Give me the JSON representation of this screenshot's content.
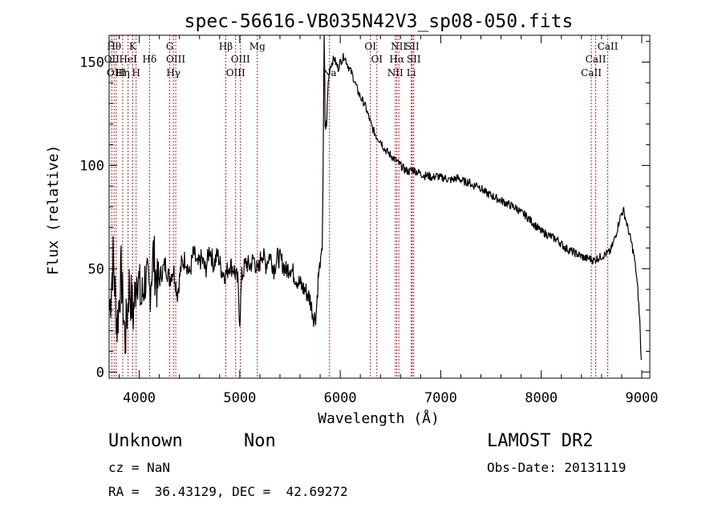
{
  "chart_data": {
    "type": "line",
    "title": "spec-56616-VB035N42V3_sp08-050.fits",
    "xlabel": "Wavelength (Å)",
    "ylabel": "Flux (relative)",
    "xlim": [
      3700,
      9080
    ],
    "ylim": [
      -3,
      163
    ],
    "xticks": [
      4000,
      5000,
      6000,
      7000,
      8000,
      9000
    ],
    "yticks": [
      0,
      50,
      100,
      150
    ],
    "grid": false,
    "line_color": "#000000",
    "marker_color": "#cc0000",
    "series": [
      {
        "x": [
          3705,
          3740,
          3780,
          3820,
          3860,
          3900,
          3940,
          3980,
          4020,
          4060,
          4100,
          4140,
          4180,
          4220,
          4260,
          4300,
          4340,
          4380,
          4420,
          4460,
          4500,
          4540,
          4580,
          4620,
          4660,
          4700,
          4740,
          4780,
          4820,
          4860,
          4900,
          4940,
          4980,
          5000,
          5020,
          5060,
          5100,
          5140,
          5180,
          5220,
          5260,
          5300,
          5340,
          5380,
          5420,
          5460,
          5500,
          5540,
          5580,
          5620,
          5660,
          5700,
          5720,
          5740,
          5760,
          5780,
          5800,
          5820,
          5830,
          5840,
          5850,
          5860,
          5870,
          5880,
          5900,
          5920,
          5940,
          5960,
          5980,
          6000,
          6040,
          6080,
          6120,
          6160,
          6200,
          6240,
          6280,
          6320,
          6360,
          6400,
          6440,
          6480,
          6520,
          6560,
          6600,
          6640,
          6680,
          6720,
          6760,
          6800,
          6840,
          6880,
          6920,
          6960,
          7000,
          7040,
          7080,
          7120,
          7160,
          7200,
          7240,
          7280,
          7320,
          7360,
          7400,
          7440,
          7480,
          7520,
          7560,
          7600,
          7640,
          7680,
          7720,
          7760,
          7800,
          7840,
          7880,
          7920,
          7960,
          8000,
          8040,
          8080,
          8120,
          8160,
          8200,
          8240,
          8280,
          8320,
          8360,
          8400,
          8440,
          8480,
          8520,
          8560,
          8600,
          8640,
          8680,
          8700,
          8720,
          8740,
          8760,
          8780,
          8800,
          8820,
          8840,
          8860,
          8880,
          8900,
          8920,
          8940,
          8960,
          8980,
          8995
        ],
        "y": [
          30,
          55,
          22,
          48,
          15,
          42,
          28,
          50,
          33,
          46,
          38,
          57,
          41,
          48,
          52,
          45,
          50,
          38,
          52,
          55,
          47,
          58,
          51,
          55,
          49,
          60,
          52,
          57,
          49,
          47,
          52,
          50,
          44,
          25,
          46,
          53,
          51,
          55,
          48,
          58,
          52,
          57,
          50,
          56,
          53,
          49,
          51,
          47,
          44,
          41,
          39,
          35,
          30,
          26,
          28,
          45,
          52,
          60,
          100,
          163,
          120,
          118,
          128,
          140,
          148,
          150,
          152,
          149,
          147,
          150,
          153,
          148,
          144,
          138,
          133,
          130,
          124,
          118,
          114,
          112,
          108,
          106,
          104,
          102,
          100,
          98,
          97,
          98,
          97,
          96,
          95,
          95,
          94,
          95,
          94,
          94,
          93,
          93,
          94,
          93,
          92,
          92,
          90,
          91,
          89,
          87,
          86,
          85,
          84,
          83,
          82,
          81,
          80,
          79,
          77,
          76,
          74,
          72,
          70,
          68,
          67,
          66,
          65,
          64,
          62,
          60,
          59,
          58,
          57,
          56,
          55,
          55,
          54,
          55,
          56,
          57,
          58,
          60,
          63,
          66,
          70,
          74,
          77,
          78,
          74,
          70,
          66,
          62,
          57,
          50,
          40,
          25,
          5
        ]
      }
    ],
    "lines": [
      {
        "w": 3727,
        "label": "OII",
        "row": 2
      },
      {
        "w": 3750,
        "label": "Hθ",
        "row": 1
      },
      {
        "w": 3771,
        "label": "OIII",
        "row": 3
      },
      {
        "w": 3835,
        "label": "Hη",
        "row": 3
      },
      {
        "w": 3889,
        "label": "HeI",
        "row": 2
      },
      {
        "w": 3934,
        "label": "K",
        "row": 1
      },
      {
        "w": 3969,
        "label": "H",
        "row": 3
      },
      {
        "w": 4102,
        "label": "Hδ",
        "row": 2
      },
      {
        "w": 4304,
        "label": "G",
        "row": 1
      },
      {
        "w": 4340,
        "label": "Hγ",
        "row": 3
      },
      {
        "w": 4363,
        "label": "OIII",
        "row": 2
      },
      {
        "w": 4861,
        "label": "Hβ",
        "row": 1
      },
      {
        "w": 4959,
        "label": "OIII",
        "row": 3
      },
      {
        "w": 5007,
        "label": "OIII",
        "row": 2
      },
      {
        "w": 5175,
        "label": "Mg",
        "row": 1
      },
      {
        "w": 5893,
        "label": "Na",
        "row": 3
      },
      {
        "w": 6300,
        "label": "OI",
        "row": 1
      },
      {
        "w": 6364,
        "label": "OI",
        "row": 2
      },
      {
        "w": 6548,
        "label": "NII",
        "row": 3
      },
      {
        "w": 6563,
        "label": "Hα",
        "row": 2
      },
      {
        "w": 6583,
        "label": "NII",
        "row": 1
      },
      {
        "w": 6707,
        "label": "Li",
        "row": 3
      },
      {
        "w": 6716,
        "label": "SII",
        "row": 1
      },
      {
        "w": 6731,
        "label": "SII",
        "row": 2
      },
      {
        "w": 8498,
        "label": "CaII",
        "row": 3
      },
      {
        "w": 8542,
        "label": "CaII",
        "row": 2
      },
      {
        "w": 8662,
        "label": "CaII",
        "row": 1
      }
    ]
  },
  "info": {
    "object_class": "Unknown",
    "subclass": "Non",
    "survey": "LAMOST DR2",
    "cz": "cz = NaN",
    "obs_date": "Obs-Date: 20131119",
    "radec": "RA =  36.43129, DEC =  42.69272"
  }
}
